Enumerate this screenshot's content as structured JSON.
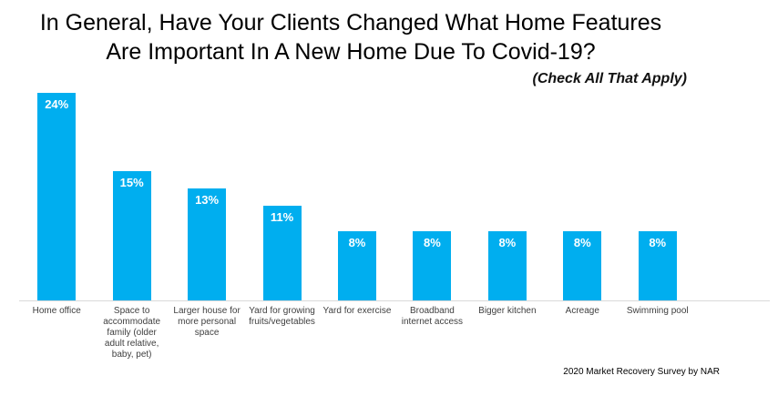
{
  "title": {
    "line1": "In General, Have Your Clients Changed What Home Features",
    "line2": "Are Important In A New Home Due To Covid-19?"
  },
  "subtitle": "(Check All That Apply)",
  "footer": "2020 Market Recovery Survey by NAR",
  "colors": {
    "bar": "#00AEEF",
    "bar_value_text": "#FFFFFF",
    "axis_line": "#D9D9D9",
    "title_text": "#000000",
    "category_label_text": "#404040"
  },
  "chart_data": {
    "type": "bar",
    "title": "In General, Have Your Clients Changed What Home Features Are Important In A New Home Due To Covid-19?",
    "subtitle": "(Check All That Apply)",
    "categories": [
      "Home office",
      "Space to accommodate family (older adult relative, baby, pet)",
      "Larger house for more personal space",
      "Yard for growing fruits/vegetables",
      "Yard for exercise",
      "Broadband internet access",
      "Bigger kitchen",
      "Acreage",
      "Swimming pool"
    ],
    "values": [
      24,
      15,
      13,
      11,
      8,
      8,
      8,
      8,
      8
    ],
    "data_labels": [
      "24%",
      "15%",
      "13%",
      "11%",
      "8%",
      "8%",
      "8%",
      "8%",
      "8%"
    ],
    "unit": "%",
    "xlabel": "",
    "ylabel": "",
    "ylim": [
      0,
      25
    ],
    "grid": false,
    "legend": false,
    "bar_labels_position": "inside-top",
    "source_note": "2020 Market Recovery Survey by NAR"
  }
}
